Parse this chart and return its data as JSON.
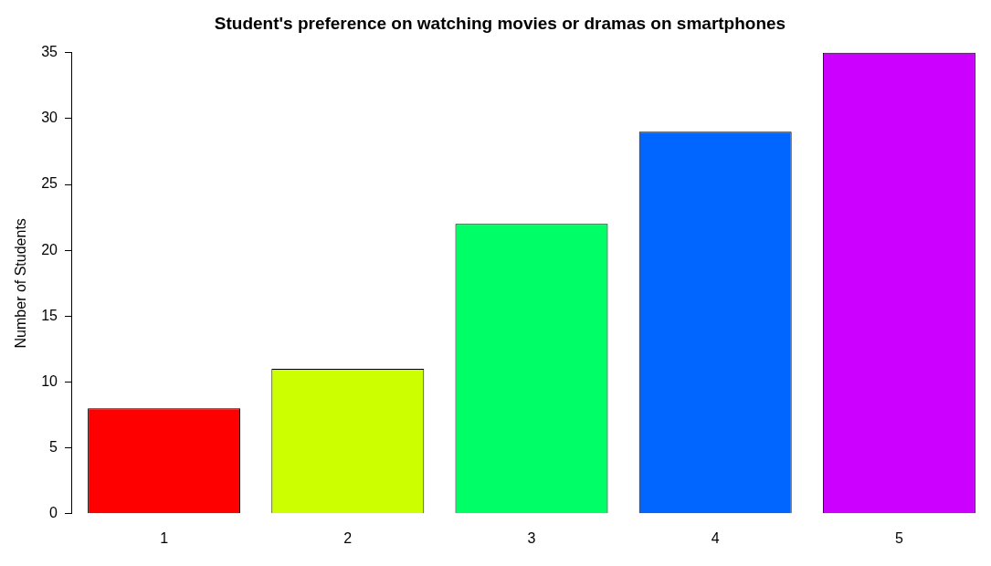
{
  "chart_data": {
    "type": "bar",
    "title": "Student's preference on watching movies or dramas on smartphones",
    "ylabel": "Number of Students",
    "categories": [
      "1",
      "2",
      "3",
      "4",
      "5"
    ],
    "values": [
      8,
      11,
      22,
      29,
      35
    ],
    "colors": [
      "#ff0000",
      "#ccff00",
      "#00ff66",
      "#0066ff",
      "#cc00ff"
    ],
    "ylim": [
      0,
      35
    ],
    "yticks": [
      0,
      5,
      10,
      15,
      20,
      25,
      30,
      35
    ]
  }
}
